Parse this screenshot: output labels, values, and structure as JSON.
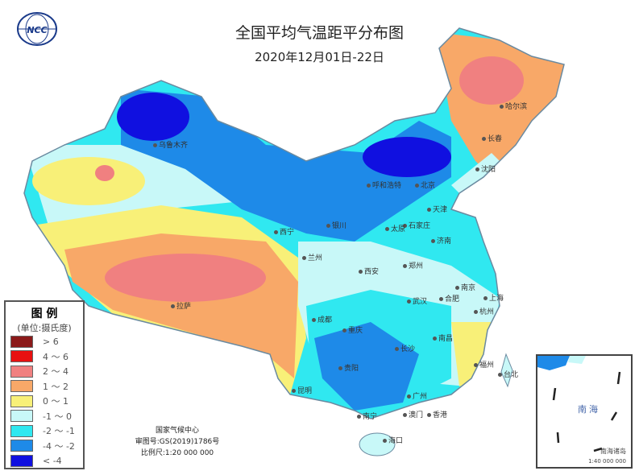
{
  "title": "全国平均气温距平分布图",
  "subtitle": "2020年12月01日-22日",
  "logo": {
    "text": "NCC",
    "arc_text": "中国"
  },
  "legend": {
    "title": "图 例",
    "unit": "(单位:摄氏度)",
    "items": [
      {
        "label": "> 6",
        "color": "#8b1a1a"
      },
      {
        "label": "4 ～ 6",
        "color": "#e81010"
      },
      {
        "label": "2 ～ 4",
        "color": "#f08080"
      },
      {
        "label": "1 ～ 2",
        "color": "#f8a868"
      },
      {
        "label": "0 ～ 1",
        "color": "#f8f078"
      },
      {
        "label": "-1 ～ 0",
        "color": "#c8f8f8"
      },
      {
        "label": "-2 ～ -1",
        "color": "#30e8f0"
      },
      {
        "label": "-4 ～ -2",
        "color": "#1e8ae8"
      },
      {
        "label": "< -4",
        "color": "#1010e0"
      }
    ]
  },
  "cities": [
    "乌鲁木齐",
    "哈尔滨",
    "长春",
    "沈阳",
    "呼和浩特",
    "北京",
    "天津",
    "石家庄",
    "太原",
    "济南",
    "银川",
    "西宁",
    "兰州",
    "西安",
    "郑州",
    "南京",
    "合肥",
    "上海",
    "武汉",
    "杭州",
    "拉萨",
    "成都",
    "重庆",
    "南昌",
    "长沙",
    "贵阳",
    "福州",
    "台北",
    "昆明",
    "南宁",
    "广州",
    "澳门",
    "香港",
    "海口"
  ],
  "credits": {
    "agency": "国家气候中心",
    "approval": "审图号:GS(2019)1786号",
    "scale": "比例尺:1:20 000 000"
  },
  "inset": {
    "sea": "南海",
    "islands": "南海诸岛",
    "scale": "1:40 000 000"
  }
}
